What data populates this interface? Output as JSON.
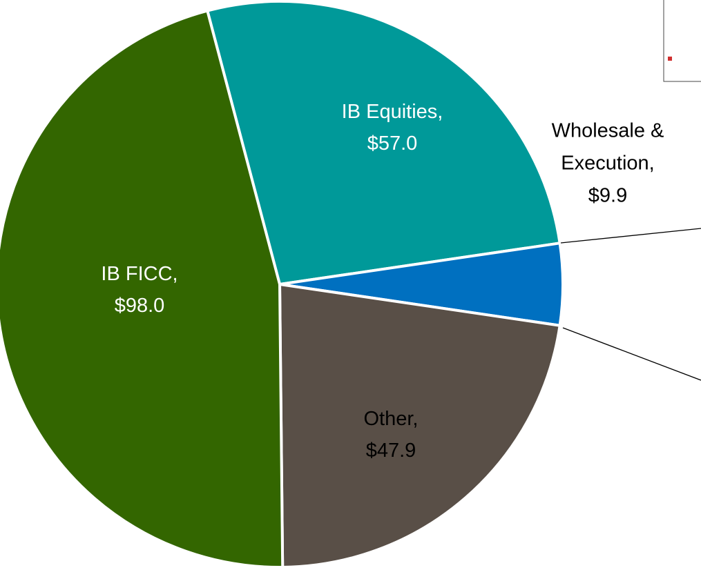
{
  "chart_data": {
    "type": "pie",
    "categories": [
      "IB Equities,",
      "Wholesale & Execution,",
      "Other,",
      "IB FICC,"
    ],
    "values": [
      57.0,
      9.9,
      47.9,
      98.0
    ],
    "value_labels": [
      "$57.0",
      "$9.9",
      "$47.9",
      "$98.0"
    ],
    "colors": [
      "#009999",
      "#0070c0",
      "#594f47",
      "#336600"
    ],
    "label_colors": [
      "#ffffff",
      "#000000",
      "#000000",
      "#ffffff"
    ]
  }
}
